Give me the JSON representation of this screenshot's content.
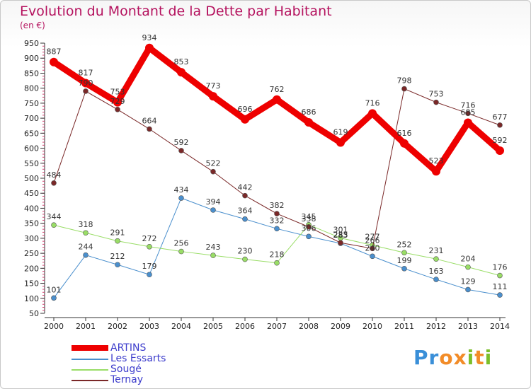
{
  "title": "Evolution du Montant de la Dette par Habitant",
  "subtitle": "(en €)",
  "logo": {
    "letters": [
      "P",
      "r",
      "o",
      "x",
      "i",
      "t",
      "i"
    ],
    "colors": [
      "#3a8fd8",
      "#3a8fd8",
      "#f28c28",
      "#f28c28",
      "#7bbf2a",
      "#f28c28",
      "#7bbf2a"
    ]
  },
  "chart_data": {
    "type": "line",
    "x": [
      2000,
      2001,
      2002,
      2003,
      2004,
      2005,
      2006,
      2007,
      2008,
      2009,
      2010,
      2011,
      2012,
      2013,
      2014
    ],
    "ylim": [
      50,
      950
    ],
    "yticks": [
      50,
      100,
      150,
      200,
      250,
      300,
      350,
      400,
      450,
      500,
      550,
      600,
      650,
      700,
      750,
      800,
      850,
      900,
      950
    ],
    "grid": false,
    "legend_position": "bottom-left",
    "series": [
      {
        "name": "ARTINS",
        "color": "#ee0000",
        "width": 9,
        "values": [
          887,
          817,
          753,
          934,
          853,
          773,
          696,
          762,
          686,
          619,
          716,
          616,
          523,
          685,
          592
        ]
      },
      {
        "name": "Les Essarts",
        "color": "#4a8fcd",
        "width": 1,
        "values": [
          101,
          244,
          212,
          179,
          434,
          394,
          364,
          332,
          306,
          283,
          240,
          199,
          163,
          129,
          111
        ]
      },
      {
        "name": "Sougé",
        "color": "#99dd66",
        "width": 1,
        "values": [
          344,
          318,
          291,
          272,
          256,
          243,
          230,
          218,
          345,
          301,
          277,
          252,
          231,
          204,
          176
        ]
      },
      {
        "name": "Ternay",
        "color": "#7a2828",
        "width": 1,
        "values": [
          484,
          790,
          729,
          664,
          592,
          522,
          442,
          382,
          338,
          285,
          266,
          798,
          753,
          716,
          677
        ]
      }
    ]
  }
}
